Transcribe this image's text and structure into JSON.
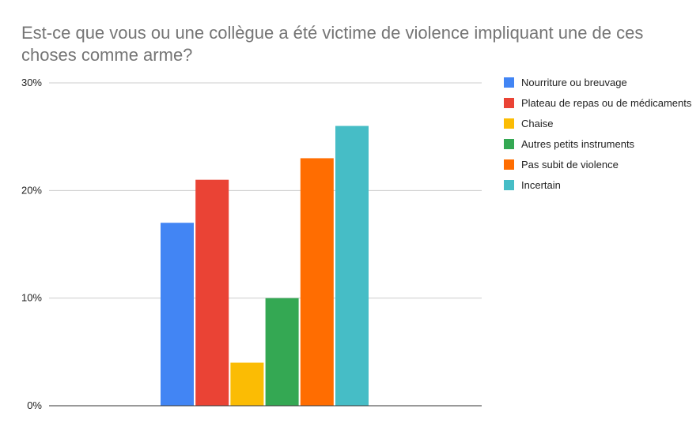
{
  "chart_data": {
    "type": "bar",
    "title": "Est-ce que vous ou une collègue a été victime de violence impliquant une de ces choses comme arme?",
    "xlabel": "",
    "ylabel": "",
    "ylim": [
      0,
      30
    ],
    "yticks": [
      0,
      10,
      20,
      30
    ],
    "ytick_labels": [
      "0%",
      "10%",
      "20%",
      "30%"
    ],
    "grid": true,
    "legend_position": "right",
    "categories": [
      ""
    ],
    "series": [
      {
        "name": "Nourriture ou breuvage",
        "values": [
          17
        ],
        "color": "#4285f4"
      },
      {
        "name": "Plateau de repas ou de médicaments",
        "values": [
          21
        ],
        "color": "#ea4335"
      },
      {
        "name": "Chaise",
        "values": [
          4
        ],
        "color": "#fbbc04"
      },
      {
        "name": "Autres petits instruments",
        "values": [
          10
        ],
        "color": "#34a853"
      },
      {
        "name": "Pas subit de violence",
        "values": [
          23
        ],
        "color": "#ff6d01"
      },
      {
        "name": "Incertain",
        "values": [
          26
        ],
        "color": "#46bdc6"
      }
    ]
  }
}
